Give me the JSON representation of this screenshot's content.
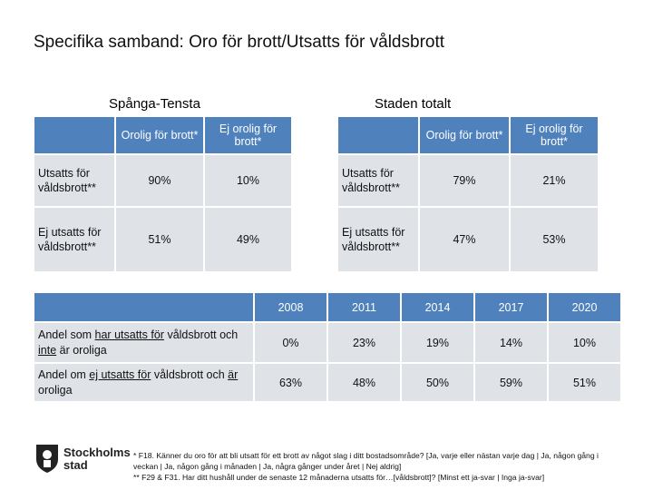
{
  "title": "Specifika samband: Oro för brott/Utsatts för våldsbrott",
  "tables": [
    {
      "name": "Spånga-Tensta",
      "columns": [
        "Orolig för brott*",
        "Ej orolig för brott*"
      ],
      "rows": [
        {
          "label": "Utsatts för våldsbrott**",
          "values": [
            "90%",
            "10%"
          ]
        },
        {
          "label": "Ej utsatts för våldsbrott**",
          "values": [
            "51%",
            "49%"
          ]
        }
      ]
    },
    {
      "name": "Staden totalt",
      "columns": [
        "Orolig för brott*",
        "Ej orolig för brott*"
      ],
      "rows": [
        {
          "label": "Utsatts för våldsbrott**",
          "values": [
            "79%",
            "21%"
          ]
        },
        {
          "label": "Ej utsatts för våldsbrott**",
          "values": [
            "47%",
            "53%"
          ]
        }
      ]
    }
  ],
  "trend_table": {
    "columns": [
      "2008",
      "2011",
      "2014",
      "2017",
      "2020"
    ],
    "rows": [
      {
        "label": [
          {
            "text": "Andel som "
          },
          {
            "text": "har utsatts för",
            "underline": true
          },
          {
            "text": " våldsbrott och "
          },
          {
            "text": "inte",
            "underline": true
          },
          {
            "text": " är oroliga"
          }
        ],
        "values": [
          "0%",
          "23%",
          "19%",
          "14%",
          "10%"
        ]
      },
      {
        "label": [
          {
            "text": "Andel om "
          },
          {
            "text": "ej utsatts för",
            "underline": true
          },
          {
            "text": " våldsbrott och "
          },
          {
            "text": "är",
            "underline": true
          },
          {
            "text": " oroliga"
          }
        ],
        "values": [
          "63%",
          "48%",
          "50%",
          "59%",
          "51%"
        ]
      }
    ]
  },
  "logo": {
    "line1": "Stockholms",
    "line2": "stad"
  },
  "footnotes": [
    "* F18. Känner du oro för att bli utsatt för ett brott av något slag i ditt bostadsområde? [Ja, varje eller nästan varje dag | Ja, någon gång i veckan | Ja, någon gång i månaden | Ja, några gånger under året | Nej aldrig]",
    "** F29 & F31. Har ditt hushåll under de senaste 12 månaderna utsatts för…[våldsbrott]? [Minst ett ja-svar | Inga ja-svar]"
  ]
}
